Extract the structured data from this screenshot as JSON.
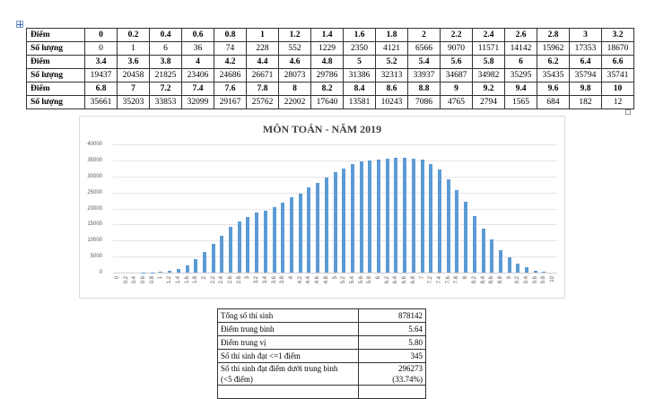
{
  "score_table": {
    "row_label_score": "Điểm",
    "row_label_count": "Số lượng",
    "blocks": [
      {
        "scores": [
          "0",
          "0.2",
          "0.4",
          "0.6",
          "0.8",
          "1",
          "1.2",
          "1.4",
          "1.6",
          "1.8",
          "2",
          "2.2",
          "2.4",
          "2.6",
          "2.8",
          "3",
          "3.2"
        ],
        "counts": [
          "0",
          "1",
          "6",
          "36",
          "74",
          "228",
          "552",
          "1229",
          "2350",
          "4121",
          "6566",
          "9070",
          "11571",
          "14142",
          "15962",
          "17353",
          "18670"
        ]
      },
      {
        "scores": [
          "3.4",
          "3.6",
          "3.8",
          "4",
          "4.2",
          "4.4",
          "4.6",
          "4.8",
          "5",
          "5.2",
          "5.4",
          "5.6",
          "5.8",
          "6",
          "6.2",
          "6.4",
          "6.6"
        ],
        "counts": [
          "19437",
          "20458",
          "21825",
          "23406",
          "24686",
          "26671",
          "28073",
          "29786",
          "31386",
          "32313",
          "33937",
          "34687",
          "34982",
          "35295",
          "35435",
          "35794",
          "35741"
        ]
      },
      {
        "scores": [
          "6.8",
          "7",
          "7.2",
          "7.4",
          "7.6",
          "7.8",
          "8",
          "8.2",
          "8.4",
          "8.6",
          "8.8",
          "9",
          "9.2",
          "9.4",
          "9.6",
          "9.8",
          "10"
        ],
        "counts": [
          "35661",
          "35203",
          "33853",
          "32099",
          "29167",
          "25762",
          "22002",
          "17640",
          "13581",
          "10243",
          "7086",
          "4765",
          "2794",
          "1565",
          "684",
          "182",
          "12"
        ]
      }
    ]
  },
  "chart_data": {
    "type": "bar",
    "title": "MÔN TOÁN - NĂM 2019",
    "xlabel": "",
    "ylabel": "",
    "ylim": [
      0,
      40000
    ],
    "yticks": [
      0,
      5000,
      10000,
      15000,
      20000,
      25000,
      30000,
      35000,
      40000
    ],
    "grid": true,
    "legend": "none",
    "bar_color": "#5b9bd5",
    "categories": [
      "0",
      "0.2",
      "0.4",
      "0.6",
      "0.8",
      "1",
      "1.2",
      "1.4",
      "1.6",
      "1.8",
      "2",
      "2.2",
      "2.4",
      "2.6",
      "2.8",
      "3",
      "3.2",
      "3.4",
      "3.6",
      "3.8",
      "4",
      "4.2",
      "4.4",
      "4.6",
      "4.8",
      "5",
      "5.2",
      "5.4",
      "5.6",
      "5.8",
      "6",
      "6.2",
      "6.4",
      "6.6",
      "6.8",
      "7",
      "7.2",
      "7.4",
      "7.6",
      "7.8",
      "8",
      "8.2",
      "8.4",
      "8.6",
      "8.8",
      "9",
      "9.2",
      "9.4",
      "9.6",
      "9.8",
      "10"
    ],
    "values": [
      0,
      1,
      6,
      36,
      74,
      228,
      552,
      1229,
      2350,
      4121,
      6566,
      9070,
      11571,
      14142,
      15962,
      17353,
      18670,
      19437,
      20458,
      21825,
      23406,
      24686,
      26671,
      28073,
      29786,
      31386,
      32313,
      33937,
      34687,
      34982,
      35295,
      35435,
      35794,
      35741,
      35661,
      35203,
      33853,
      32099,
      29167,
      25762,
      22002,
      17640,
      13581,
      10243,
      7086,
      4765,
      2794,
      1565,
      684,
      182,
      12
    ]
  },
  "stats_table": {
    "rows": [
      {
        "label": "Tổng số thí sinh",
        "value": "878142"
      },
      {
        "label": "Điểm trung bình",
        "value": "5.64"
      },
      {
        "label": "Điểm trung vị",
        "value": "5.80"
      },
      {
        "label": "Số thí sinh đạt <=1 điểm",
        "value": "345"
      },
      {
        "label": "Số thí sinh đạt điểm dưới trung bình",
        "label2": "(<5 điểm)",
        "value": "296273",
        "value2": "(33.74%)"
      }
    ]
  }
}
